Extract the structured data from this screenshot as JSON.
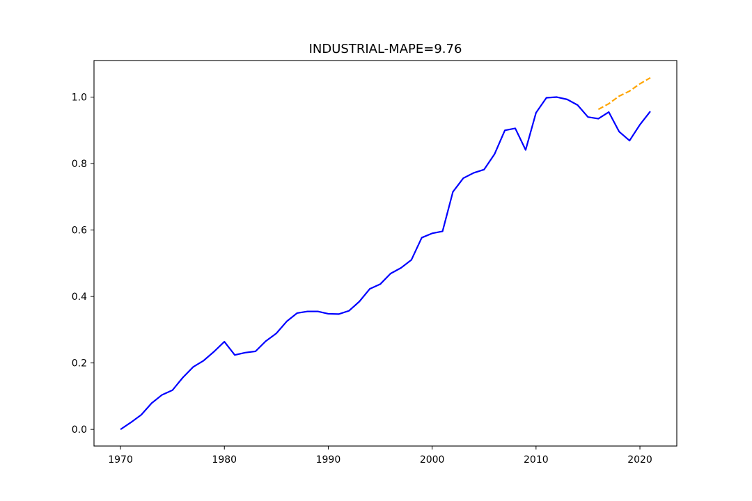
{
  "chart_data": {
    "type": "line",
    "title": "INDUSTRIAL-MAPE=9.76",
    "xlabel": "",
    "ylabel": "",
    "xlim": [
      1967.45,
      2023.55
    ],
    "ylim": [
      -0.05,
      1.11
    ],
    "x_ticks": [
      1970,
      1980,
      1990,
      2000,
      2010,
      2020
    ],
    "y_ticks": [
      0.0,
      0.2,
      0.4,
      0.6,
      0.8,
      1.0
    ],
    "x_tick_labels": [
      "1970",
      "1980",
      "1990",
      "2000",
      "2010",
      "2020"
    ],
    "y_tick_labels": [
      "0.0",
      "0.2",
      "0.4",
      "0.6",
      "0.8",
      "1.0"
    ],
    "grid": false,
    "legend": "none",
    "series": [
      {
        "style": "solid",
        "color": "#0000ff",
        "x": [
          1970,
          1971,
          1972,
          1973,
          1974,
          1975,
          1976,
          1977,
          1978,
          1979,
          1980,
          1981,
          1982,
          1983,
          1984,
          1985,
          1986,
          1987,
          1988,
          1989,
          1990,
          1991,
          1992,
          1993,
          1994,
          1995,
          1996,
          1997,
          1998,
          1999,
          2000,
          2001,
          2002,
          2003,
          2004,
          2005,
          2006,
          2007,
          2008,
          2009,
          2010,
          2011,
          2012,
          2013,
          2014,
          2015,
          2016,
          2017,
          2018,
          2019,
          2020,
          2021
        ],
        "y": [
          0.0,
          0.021,
          0.044,
          0.079,
          0.104,
          0.118,
          0.156,
          0.188,
          0.207,
          0.234,
          0.264,
          0.224,
          0.231,
          0.235,
          0.266,
          0.289,
          0.325,
          0.35,
          0.355,
          0.355,
          0.348,
          0.347,
          0.357,
          0.385,
          0.423,
          0.437,
          0.469,
          0.486,
          0.51,
          0.577,
          0.59,
          0.596,
          0.715,
          0.756,
          0.772,
          0.782,
          0.828,
          0.9,
          0.906,
          0.841,
          0.953,
          0.998,
          1.0,
          0.993,
          0.976,
          0.94,
          0.935,
          0.955,
          0.896,
          0.869,
          0.917,
          0.957
        ]
      },
      {
        "style": "dashed",
        "color": "#ffa500",
        "x": [
          2016,
          2017,
          2018,
          2019,
          2020,
          2021
        ],
        "y": [
          0.963,
          0.98,
          1.003,
          1.018,
          1.04,
          1.058
        ]
      }
    ]
  }
}
